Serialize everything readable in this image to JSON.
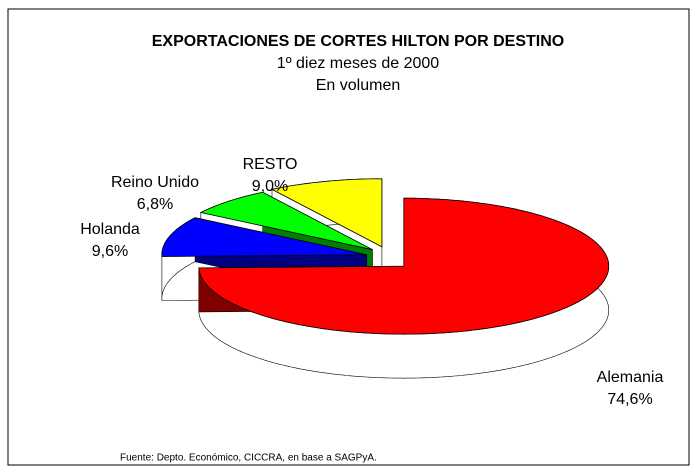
{
  "chart_data": {
    "type": "pie3d",
    "title": "EXPORTACIONES DE CORTES HILTON POR DESTINO",
    "subtitle": [
      "1º diez meses de 2000",
      "En volumen"
    ],
    "categories": [
      "Alemania",
      "Holanda",
      "Reino Unido",
      "RESTO"
    ],
    "values": [
      74.6,
      9.6,
      6.8,
      9.0
    ],
    "value_labels": [
      "74,6%",
      "9,6%",
      "6,8%",
      "9,0%"
    ],
    "colors": [
      "#ff0000",
      "#0000ff",
      "#00ff00",
      "#ffff00"
    ],
    "source": "Fuente: Depto. Económico, CICCRA,  en base a SAGPyA."
  }
}
